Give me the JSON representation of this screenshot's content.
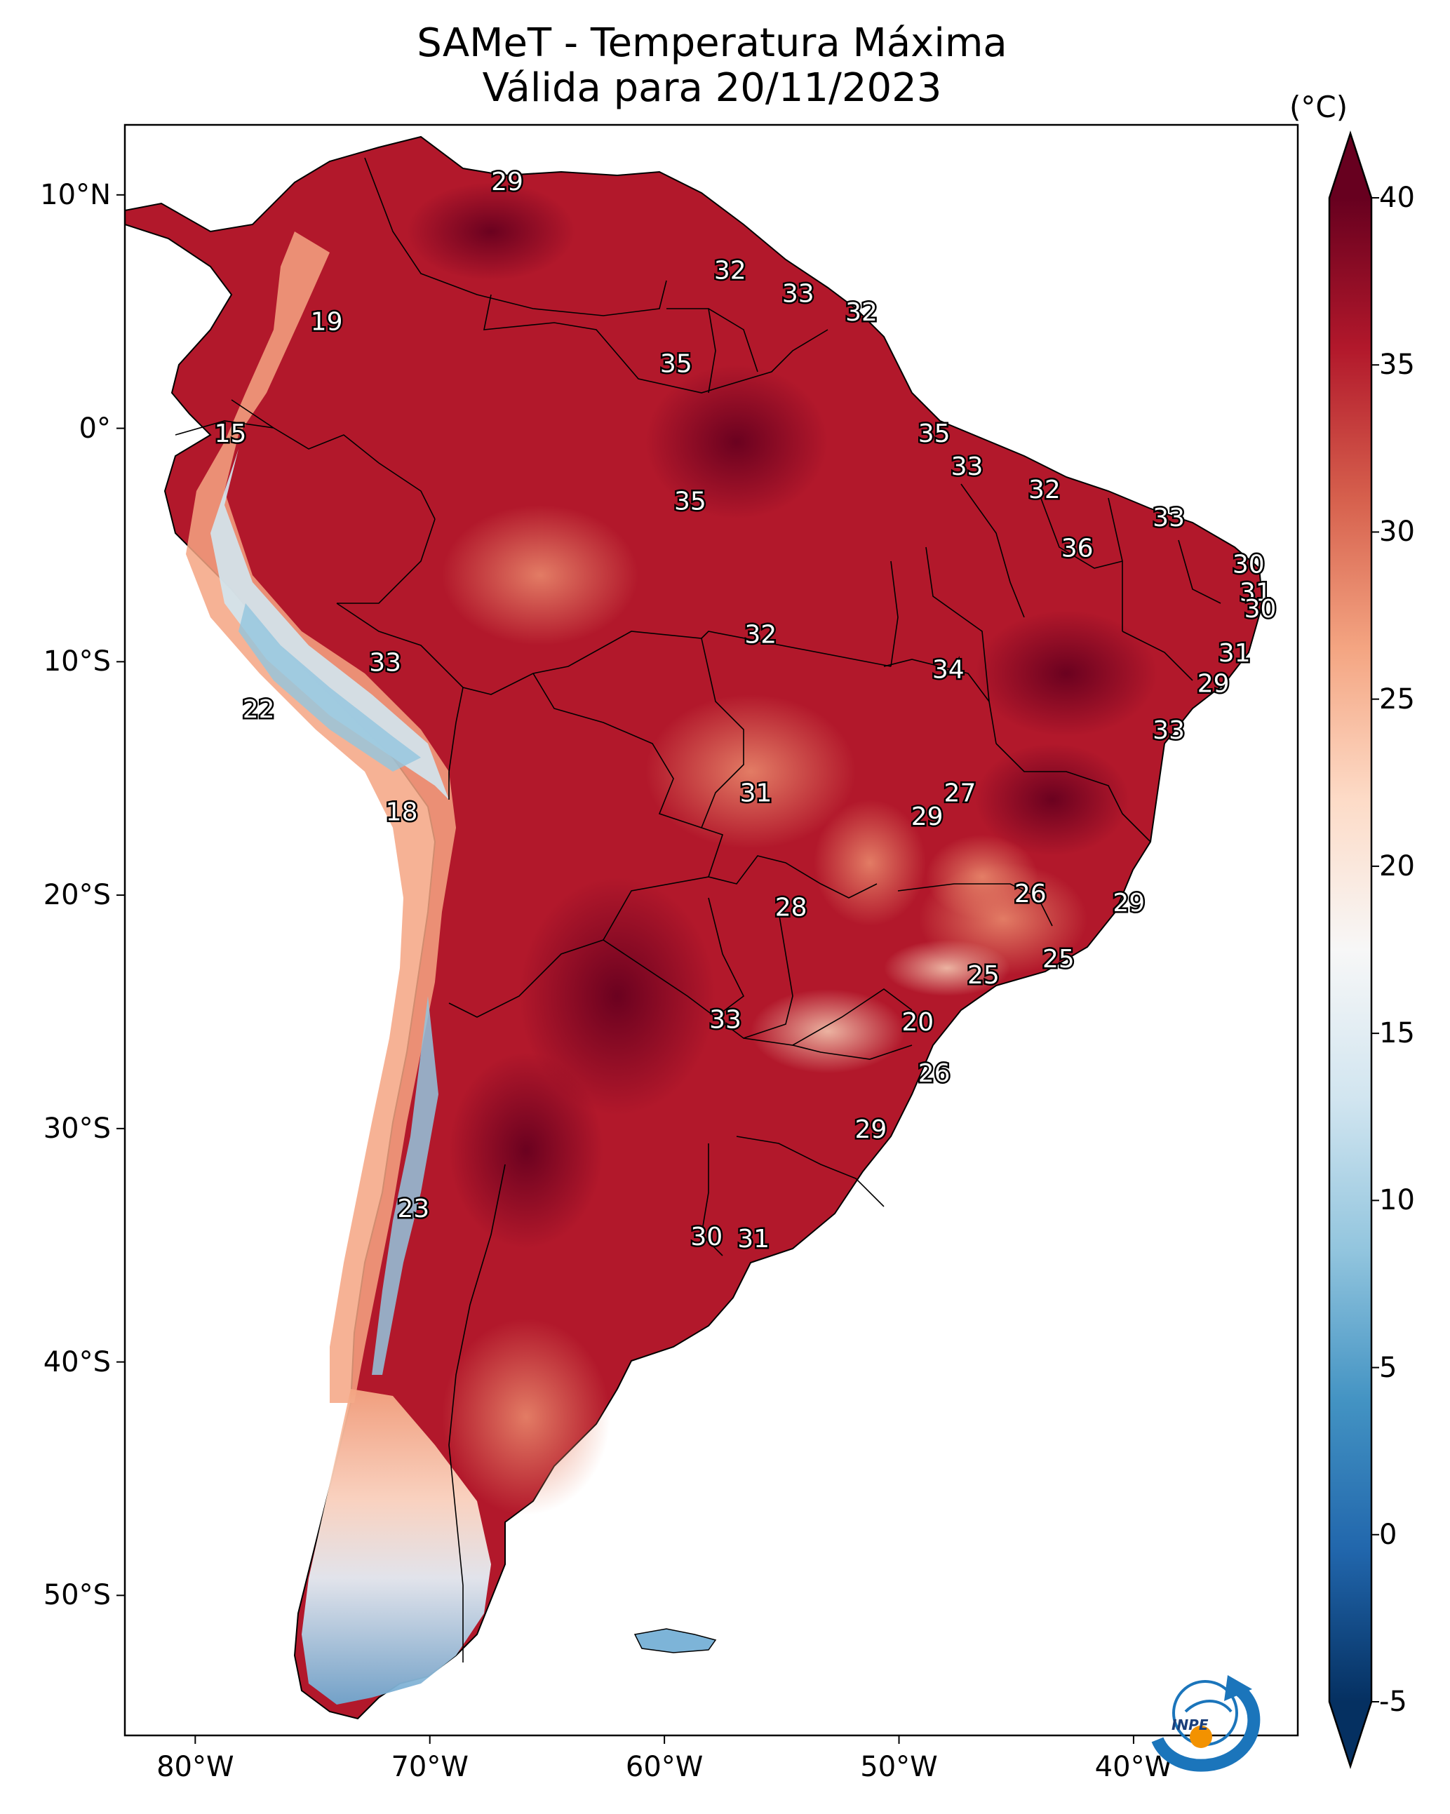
{
  "title": "SAMeT - Temperatura Máxima",
  "subtitle": "Válida para 20/11/2023",
  "colorbar": {
    "unit": "(°C)",
    "ticks": [
      "40",
      "35",
      "30",
      "25",
      "20",
      "15",
      "10",
      "5",
      "0",
      "-5"
    ],
    "vmin": -5,
    "vmax": 40,
    "cmap": [
      "#053061",
      "#2166ac",
      "#4393c3",
      "#92c5de",
      "#d1e5f0",
      "#f7f7f7",
      "#fddbc7",
      "#f4a582",
      "#d6604d",
      "#b2182b",
      "#67001f"
    ]
  },
  "axes": {
    "lat_labels": [
      "10°N",
      "0°",
      "10°S",
      "20°S",
      "30°S",
      "40°S",
      "50°S"
    ],
    "lon_labels": [
      "80°W",
      "70°W",
      "60°W",
      "50°W",
      "40°W"
    ]
  },
  "map": {
    "extent_lon": [
      -83,
      -33
    ],
    "extent_lat": [
      -56,
      13
    ],
    "ocean_color": "#ffffff",
    "border_color": "#000000"
  },
  "station_labels": [
    {
      "lon": -66.7,
      "lat": 10.6,
      "v": "29"
    },
    {
      "lon": -57.2,
      "lat": 6.8,
      "v": "32"
    },
    {
      "lon": -54.3,
      "lat": 5.8,
      "v": "33"
    },
    {
      "lon": -51.6,
      "lat": 5.0,
      "v": "32"
    },
    {
      "lon": -59.5,
      "lat": 2.8,
      "v": "35"
    },
    {
      "lon": -74.4,
      "lat": 4.6,
      "v": "19"
    },
    {
      "lon": -78.5,
      "lat": -0.2,
      "v": "15"
    },
    {
      "lon": -48.5,
      "lat": -0.2,
      "v": "35"
    },
    {
      "lon": -47.1,
      "lat": -1.6,
      "v": "33"
    },
    {
      "lon": -43.8,
      "lat": -2.6,
      "v": "32"
    },
    {
      "lon": -58.9,
      "lat": -3.1,
      "v": "35"
    },
    {
      "lon": -38.5,
      "lat": -3.8,
      "v": "33"
    },
    {
      "lon": -42.4,
      "lat": -5.1,
      "v": "36"
    },
    {
      "lon": -35.1,
      "lat": -5.8,
      "v": "30"
    },
    {
      "lon": -34.8,
      "lat": -7.0,
      "v": "31"
    },
    {
      "lon": -34.6,
      "lat": -7.7,
      "v": "30"
    },
    {
      "lon": -55.9,
      "lat": -8.8,
      "v": "32"
    },
    {
      "lon": -71.9,
      "lat": -10.0,
      "v": "33"
    },
    {
      "lon": -35.7,
      "lat": -9.6,
      "v": "31"
    },
    {
      "lon": -47.9,
      "lat": -10.3,
      "v": "34"
    },
    {
      "lon": -36.6,
      "lat": -10.9,
      "v": "29"
    },
    {
      "lon": -77.3,
      "lat": -12.0,
      "v": "22"
    },
    {
      "lon": -38.5,
      "lat": -12.9,
      "v": "33"
    },
    {
      "lon": -56.1,
      "lat": -15.6,
      "v": "31"
    },
    {
      "lon": -47.4,
      "lat": -15.6,
      "v": "27"
    },
    {
      "lon": -48.8,
      "lat": -16.6,
      "v": "29"
    },
    {
      "lon": -71.2,
      "lat": -16.4,
      "v": "18"
    },
    {
      "lon": -44.4,
      "lat": -19.9,
      "v": "26"
    },
    {
      "lon": -40.2,
      "lat": -20.3,
      "v": "29"
    },
    {
      "lon": -54.6,
      "lat": -20.5,
      "v": "28"
    },
    {
      "lon": -43.2,
      "lat": -22.7,
      "v": "25"
    },
    {
      "lon": -46.4,
      "lat": -23.4,
      "v": "25"
    },
    {
      "lon": -57.4,
      "lat": -25.3,
      "v": "33"
    },
    {
      "lon": -49.2,
      "lat": -25.4,
      "v": "20"
    },
    {
      "lon": -48.5,
      "lat": -27.6,
      "v": "26"
    },
    {
      "lon": -51.2,
      "lat": -30.0,
      "v": "29"
    },
    {
      "lon": -70.7,
      "lat": -33.4,
      "v": "23"
    },
    {
      "lon": -58.2,
      "lat": -34.6,
      "v": "30"
    },
    {
      "lon": -56.2,
      "lat": -34.7,
      "v": "31"
    }
  ],
  "logo": {
    "text": "INPE"
  }
}
